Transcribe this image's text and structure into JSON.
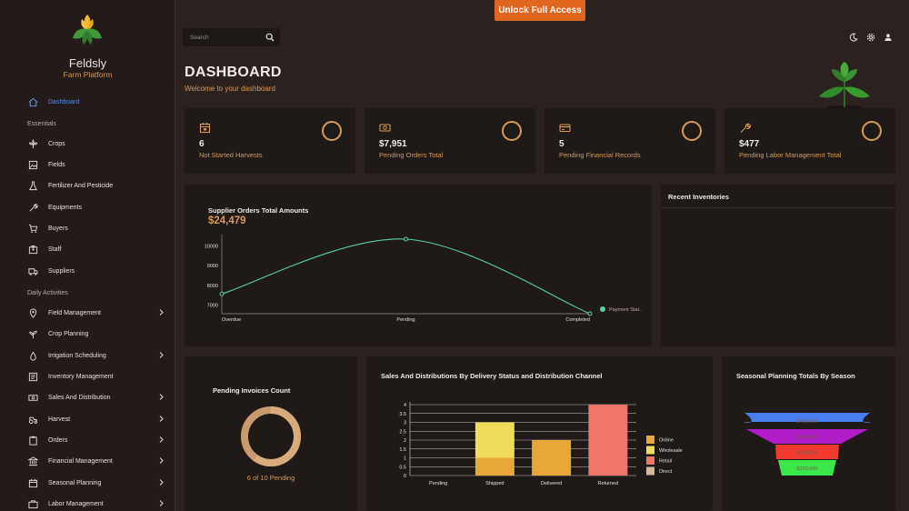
{
  "brand": {
    "name": "Feldsly",
    "subtitle": "Farm Platform"
  },
  "topbar": {
    "unlock_label": "Unlock Full Access",
    "search_placeholder": "Search"
  },
  "header": {
    "title": "DASHBOARD",
    "subtitle": "Welcome to your dashboard"
  },
  "sidebar": {
    "dashboard": "Dashboard",
    "section_essentials": "Essentials",
    "essentials": [
      "Crops",
      "Fields",
      "Fertilizer And Pesticide",
      "Equipments",
      "Buyers",
      "Staff",
      "Suppliers"
    ],
    "section_daily": "Daily Activities",
    "daily": [
      {
        "label": "Field Management",
        "chevron": true
      },
      {
        "label": "Crop Planning",
        "chevron": false
      },
      {
        "label": "Irrigation Scheduling",
        "chevron": true
      },
      {
        "label": "Inventory Management",
        "chevron": false
      },
      {
        "label": "Sales And Distribution",
        "chevron": true
      },
      {
        "label": "Harvest",
        "chevron": true
      },
      {
        "label": "Orders",
        "chevron": true
      },
      {
        "label": "Financial Management",
        "chevron": true
      },
      {
        "label": "Seasonal Planning",
        "chevron": true
      },
      {
        "label": "Labor Management",
        "chevron": true
      }
    ]
  },
  "stats": [
    {
      "value": "6",
      "label": "Not Started Harvests",
      "icon": "calendar-icon"
    },
    {
      "value": "$7,951",
      "label": "Pending Orders Total",
      "icon": "money-icon"
    },
    {
      "value": "5",
      "label": "Pending Financial Records",
      "icon": "card-icon"
    },
    {
      "value": "$477",
      "label": "Pending Labor Management Total",
      "icon": "wrench-icon"
    }
  ],
  "supplier_chart": {
    "title": "Supplier Orders Total Amounts",
    "total": "$24,479"
  },
  "recent_inventories": {
    "title": "Recent Inventories"
  },
  "pending_invoices": {
    "title": "Pending Invoices Count",
    "caption": "6 of 10 Pending"
  },
  "sales_chart": {
    "title": "Sales And Distributions By Delivery Status and Distribution Channel"
  },
  "seasonal_chart": {
    "title": "Seasonal Planning Totals By Season"
  },
  "colors": {
    "accent": "#d89a5a",
    "unlock": "#e0651e",
    "line": "#5ecfa4",
    "active_nav": "#5b8fe8"
  },
  "chart_data": [
    {
      "type": "line",
      "categories": [
        "Overdue",
        "Pending",
        "Completed"
      ],
      "series": [
        {
          "name": "Payment Stat..",
          "values": [
            7570,
            10340,
            6570
          ]
        }
      ],
      "yticks": [
        7000,
        8000,
        9000,
        10000
      ],
      "ylim": [
        6570,
        10340
      ],
      "legend": "right"
    },
    {
      "type": "bar",
      "categories": [
        "Pending",
        "Shipped",
        "Delivered",
        "Returned"
      ],
      "series": [
        {
          "name": "Online",
          "values": [
            0,
            1,
            2,
            0
          ]
        },
        {
          "name": "Wholesale",
          "values": [
            0,
            2,
            0,
            0
          ]
        },
        {
          "name": "Retail",
          "values": [
            0,
            0,
            0,
            4
          ]
        },
        {
          "name": "Direct",
          "values": [
            0,
            0,
            0,
            0
          ]
        }
      ],
      "stacked": true,
      "yticks": [
        "0",
        "0.5",
        "1",
        "1.5",
        "2",
        "2.5",
        "3",
        "3.5",
        "4"
      ],
      "ylim": [
        0,
        4
      ],
      "legend": "right"
    },
    {
      "type": "funnel",
      "categories": [
        "Season 1",
        "Season 2",
        "Season 3",
        "Season 4"
      ],
      "values": [
        405000,
        380000,
        310000,
        250000
      ],
      "labels": [
        "$405,000",
        "$380,000",
        "$310,000",
        "$250,000"
      ]
    },
    {
      "type": "pie",
      "values": [
        6,
        10
      ],
      "caption": "6 of 10 Pending"
    }
  ]
}
